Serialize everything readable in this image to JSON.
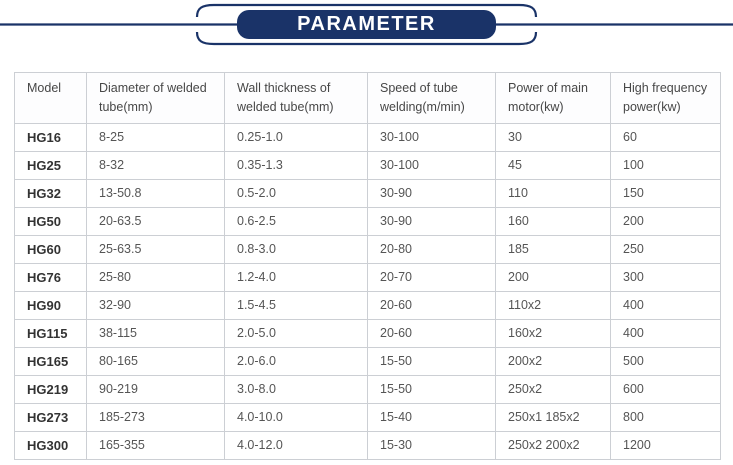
{
  "header": {
    "title": "PARAMETER",
    "accent_color": "#1a3368"
  },
  "table": {
    "columns": [
      "Model",
      "Diameter of welded tube(mm)",
      "Wall thickness of welded tube(mm)",
      "Speed of tube welding(m/min)",
      "Power of main motor(kw)",
      "High frequency power(kw)"
    ],
    "rows": [
      [
        "HG16",
        "8-25",
        "0.25-1.0",
        "30-100",
        "30",
        "60"
      ],
      [
        "HG25",
        "8-32",
        "0.35-1.3",
        "30-100",
        "45",
        "100"
      ],
      [
        "HG32",
        "13-50.8",
        "0.5-2.0",
        "30-90",
        "110",
        "150"
      ],
      [
        "HG50",
        "20-63.5",
        "0.6-2.5",
        "30-90",
        "160",
        "200"
      ],
      [
        "HG60",
        "25-63.5",
        "0.8-3.0",
        "20-80",
        "185",
        "250"
      ],
      [
        "HG76",
        "25-80",
        "1.2-4.0",
        "20-70",
        "200",
        "300"
      ],
      [
        "HG90",
        "32-90",
        "1.5-4.5",
        "20-60",
        "110x2",
        "400"
      ],
      [
        "HG115",
        "38-115",
        "2.0-5.0",
        "20-60",
        "160x2",
        "400"
      ],
      [
        "HG165",
        "80-165",
        "2.0-6.0",
        "15-50",
        "200x2",
        "500"
      ],
      [
        "HG219",
        "90-219",
        "3.0-8.0",
        "15-50",
        "250x2",
        "600"
      ],
      [
        "HG273",
        "185-273",
        "4.0-10.0",
        "15-40",
        "250x1 185x2",
        "800"
      ],
      [
        "HG300",
        "165-355",
        "4.0-12.0",
        "15-30",
        "250x2 200x2",
        "1200"
      ]
    ]
  }
}
